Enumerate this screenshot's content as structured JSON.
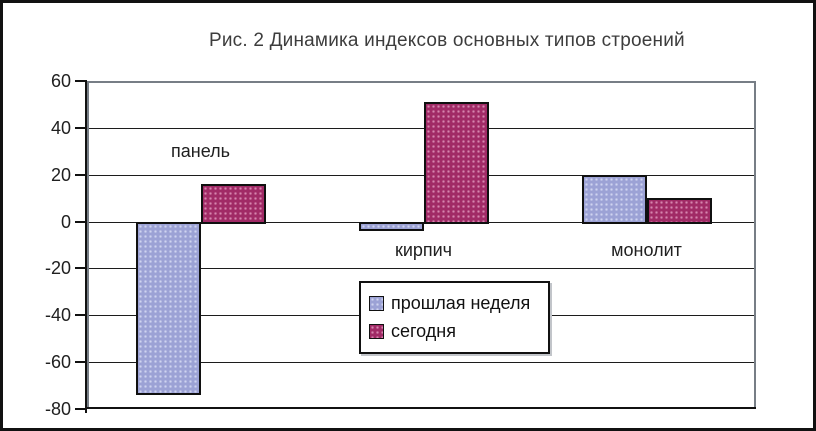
{
  "chart_data": {
    "type": "bar",
    "title": "Рис. 2 Динамика индексов основных типов строений",
    "categories": [
      "панель",
      "кирпич",
      "монолит"
    ],
    "series": [
      {
        "name": "прошлая неделя",
        "color": "#9CA2D5",
        "dot_color": "#CFD4EF",
        "values": [
          -73,
          -3,
          20
        ]
      },
      {
        "name": "сегодня",
        "color": "#A12A66",
        "dot_color": "#D685AF",
        "values": [
          16,
          51,
          10
        ]
      }
    ],
    "xlabel": "",
    "ylabel": "",
    "ylim": [
      -80,
      60
    ],
    "yticks": [
      60,
      40,
      20,
      0,
      -20,
      -40,
      -60,
      -80
    ],
    "grid": true,
    "legend_position": "inside-bottom-center",
    "bar_border_color": "#101010",
    "background_color": "#ffffff"
  }
}
